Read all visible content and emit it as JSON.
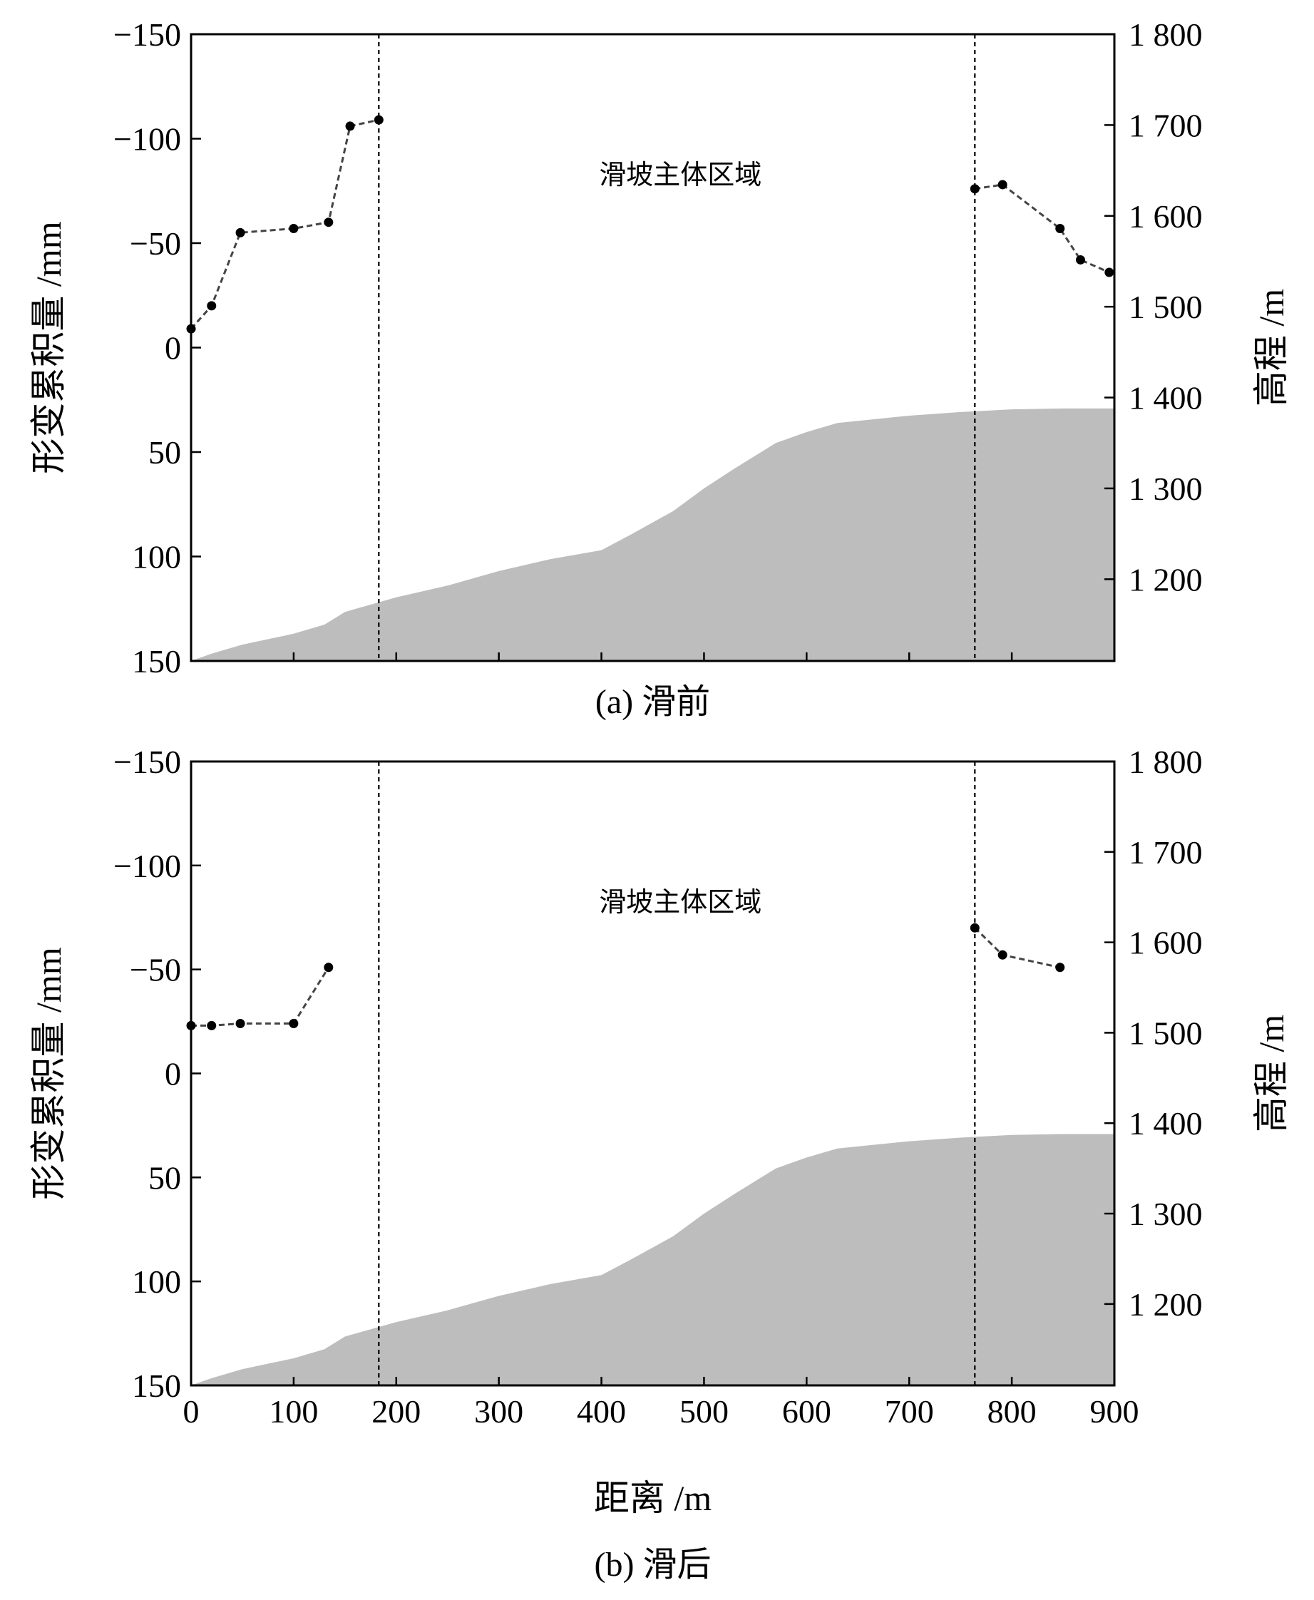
{
  "chart_data": [
    {
      "id": "a",
      "type": "line",
      "caption": "(a) 滑前",
      "annotation": "滑坡主体区域",
      "xlabel": "",
      "xlim": [
        0,
        900
      ],
      "x_ticks": [],
      "ylabel_left": "形变累积量 /mm",
      "ylim_left": [
        150,
        -150
      ],
      "y_ticks_left": [
        "−150",
        "−100",
        "−50",
        "0",
        "50",
        "100",
        "150"
      ],
      "y_tick_values_left": [
        -150,
        -100,
        -50,
        0,
        50,
        100,
        150
      ],
      "ylabel_right": "高程 /m",
      "ylim_right": [
        1110,
        1800
      ],
      "y_ticks_right": [
        "1 800",
        "1 700",
        "1 600",
        "1 500",
        "1 400",
        "1 300",
        "1 200"
      ],
      "y_tick_values_right": [
        1800,
        1700,
        1600,
        1500,
        1400,
        1300,
        1200
      ],
      "boundaries_x": [
        183,
        764
      ],
      "series": [
        {
          "name": "形变累积量 (左段)",
          "x": [
            0,
            20,
            48,
            100,
            134,
            155,
            183
          ],
          "y": [
            -9,
            -20,
            -55,
            -57,
            -60,
            -106,
            -109
          ]
        },
        {
          "name": "形变累积量 (右段)",
          "x": [
            764,
            791,
            847,
            867,
            895
          ],
          "y": [
            -76,
            -78,
            -57,
            -42,
            -36
          ]
        }
      ],
      "elevation": {
        "x": [
          0,
          20,
          50,
          100,
          130,
          150,
          200,
          250,
          300,
          350,
          400,
          430,
          470,
          500,
          530,
          570,
          600,
          630,
          700,
          750,
          800,
          850,
          900
        ],
        "y": [
          1110,
          1118,
          1128,
          1140,
          1150,
          1164,
          1180,
          1193,
          1209,
          1222,
          1232,
          1250,
          1275,
          1300,
          1322,
          1350,
          1362,
          1372,
          1380,
          1384,
          1387,
          1388,
          1388
        ]
      }
    },
    {
      "id": "b",
      "type": "line",
      "caption": "(b) 滑后",
      "annotation": "滑坡主体区域",
      "xlabel": "距离 /m",
      "xlim": [
        0,
        900
      ],
      "x_ticks": [
        "0",
        "100",
        "200",
        "300",
        "400",
        "500",
        "600",
        "700",
        "800",
        "900"
      ],
      "x_tick_values": [
        0,
        100,
        200,
        300,
        400,
        500,
        600,
        700,
        800,
        900
      ],
      "ylabel_left": "形变累积量 /mm",
      "ylim_left": [
        150,
        -150
      ],
      "y_ticks_left": [
        "−150",
        "−100",
        "−50",
        "0",
        "50",
        "100",
        "150"
      ],
      "y_tick_values_left": [
        -150,
        -100,
        -50,
        0,
        50,
        100,
        150
      ],
      "ylabel_right": "高程 /m",
      "ylim_right": [
        1110,
        1800
      ],
      "y_ticks_right": [
        "1 800",
        "1 700",
        "1 600",
        "1 500",
        "1 400",
        "1 300",
        "1 200"
      ],
      "y_tick_values_right": [
        1800,
        1700,
        1600,
        1500,
        1400,
        1300,
        1200
      ],
      "boundaries_x": [
        183,
        764
      ],
      "series": [
        {
          "name": "形变累积量 (左段)",
          "x": [
            0,
            20,
            48,
            100,
            134
          ],
          "y": [
            -23,
            -23,
            -24,
            -24,
            -51
          ]
        },
        {
          "name": "形变累积量 (右段)",
          "x": [
            764,
            791,
            847
          ],
          "y": [
            -70,
            -57,
            -51
          ]
        }
      ],
      "elevation": {
        "x": [
          0,
          20,
          50,
          100,
          130,
          150,
          200,
          250,
          300,
          350,
          400,
          430,
          470,
          500,
          530,
          570,
          600,
          630,
          700,
          750,
          800,
          850,
          900
        ],
        "y": [
          1110,
          1118,
          1128,
          1140,
          1150,
          1164,
          1180,
          1193,
          1209,
          1222,
          1232,
          1250,
          1275,
          1300,
          1322,
          1350,
          1362,
          1372,
          1380,
          1384,
          1387,
          1388,
          1388
        ]
      }
    }
  ]
}
